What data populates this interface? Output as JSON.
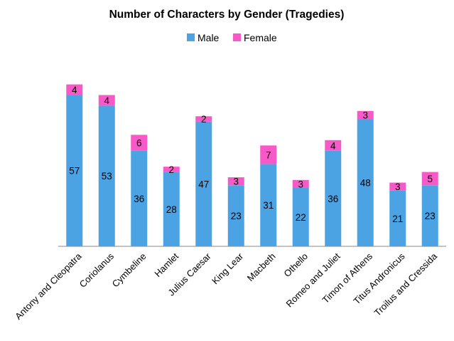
{
  "chart_data": {
    "type": "bar",
    "stacked": true,
    "title": "Number of Characters by Gender (Tragedies)",
    "xlabel": "",
    "ylabel": "",
    "ylim": [
      0,
      70
    ],
    "grid": false,
    "legend_position": "top-center",
    "categories": [
      "Antony and Cleopatra",
      "Coriolanus",
      "Cymbeline",
      "Hamlet",
      "Julius Caesar",
      "King Lear",
      "Macbeth",
      "Othello",
      "Romeo and Juliet",
      "Timon of Athens",
      "Titus Andronicus",
      "Troilus and Cressida"
    ],
    "series": [
      {
        "name": "Male",
        "color": "#4BA3E3",
        "values": [
          57,
          53,
          36,
          28,
          47,
          23,
          31,
          22,
          36,
          48,
          21,
          23
        ]
      },
      {
        "name": "Female",
        "color": "#F75AC6",
        "values": [
          4,
          4,
          6,
          2,
          2,
          3,
          7,
          3,
          4,
          3,
          3,
          5
        ]
      }
    ]
  }
}
